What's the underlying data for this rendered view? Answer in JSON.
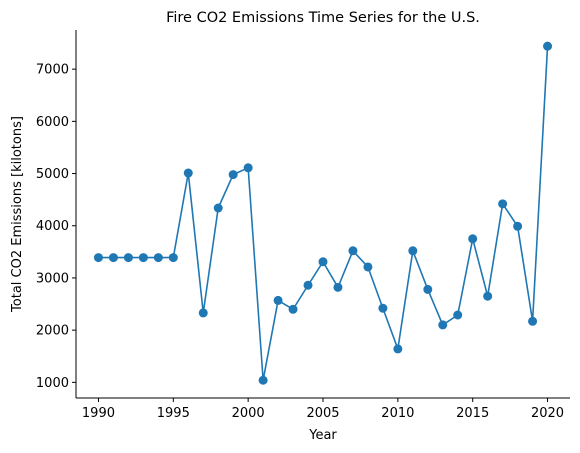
{
  "chart_data": {
    "type": "line",
    "title": "Fire CO2 Emissions Time Series for the U.S.",
    "xlabel": "Year",
    "ylabel": "Total CO2 Emissions [kilotons]",
    "xlim": [
      1988.5,
      2021.5
    ],
    "ylim": [
      700,
      7750
    ],
    "xticks": [
      1990,
      1995,
      2000,
      2005,
      2010,
      2015,
      2020
    ],
    "yticks": [
      1000,
      2000,
      3000,
      4000,
      5000,
      6000,
      7000
    ],
    "grid": false,
    "color": "#1f77b4",
    "series": [
      {
        "x": [
          1990,
          1991,
          1992,
          1993,
          1994,
          1995,
          1996,
          1997,
          1998,
          1999,
          2000,
          2001,
          2002,
          2003,
          2004,
          2005,
          2006,
          2007,
          2008,
          2009,
          2010,
          2011,
          2012,
          2013,
          2014,
          2015,
          2016,
          2017,
          2018,
          2019,
          2020
        ],
        "values": [
          3390,
          3390,
          3390,
          3390,
          3390,
          3390,
          5010,
          2330,
          4340,
          4980,
          5110,
          1040,
          2570,
          2400,
          2860,
          3310,
          2820,
          3520,
          3210,
          2420,
          1640,
          3520,
          2780,
          2100,
          2290,
          3750,
          2650,
          4420,
          3990,
          2170,
          7440
        ]
      }
    ]
  }
}
